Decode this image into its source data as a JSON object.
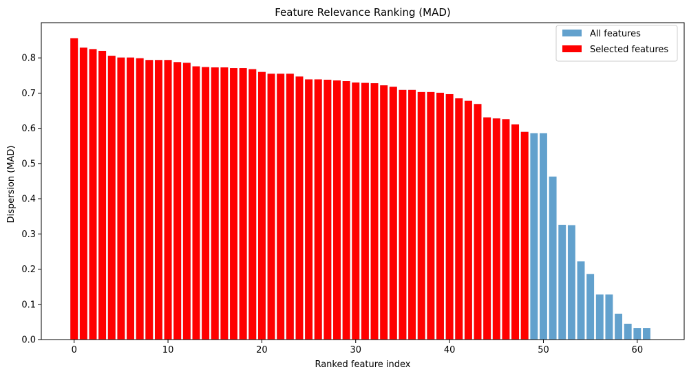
{
  "chart_data": {
    "type": "bar",
    "title": "Feature Relevance Ranking (MAD)",
    "xlabel": "Ranked feature index",
    "ylabel": "Dispersion (MAD)",
    "xlim": [
      -3.5,
      65
    ],
    "ylim": [
      0,
      0.9
    ],
    "xticks": [
      0,
      10,
      20,
      30,
      40,
      50,
      60
    ],
    "yticks": [
      0.0,
      0.1,
      0.2,
      0.3,
      0.4,
      0.5,
      0.6,
      0.7,
      0.8
    ],
    "legend_position": "top-right",
    "grid": false,
    "selected_count": 49,
    "series": [
      {
        "name": "All features",
        "color": "#62a1cd",
        "x": [
          0,
          1,
          2,
          3,
          4,
          5,
          6,
          7,
          8,
          9,
          10,
          11,
          12,
          13,
          14,
          15,
          16,
          17,
          18,
          19,
          20,
          21,
          22,
          23,
          24,
          25,
          26,
          27,
          28,
          29,
          30,
          31,
          32,
          33,
          34,
          35,
          36,
          37,
          38,
          39,
          40,
          41,
          42,
          43,
          44,
          45,
          46,
          47,
          48,
          49,
          50,
          51,
          52,
          53,
          54,
          55,
          56,
          57,
          58,
          59,
          60,
          61
        ],
        "values": [
          0.856,
          0.829,
          0.825,
          0.82,
          0.806,
          0.801,
          0.801,
          0.799,
          0.794,
          0.794,
          0.794,
          0.788,
          0.786,
          0.776,
          0.774,
          0.773,
          0.773,
          0.771,
          0.771,
          0.768,
          0.76,
          0.755,
          0.755,
          0.755,
          0.747,
          0.739,
          0.739,
          0.738,
          0.736,
          0.734,
          0.73,
          0.729,
          0.728,
          0.722,
          0.718,
          0.709,
          0.709,
          0.703,
          0.703,
          0.701,
          0.697,
          0.685,
          0.678,
          0.669,
          0.631,
          0.628,
          0.626,
          0.611,
          0.59,
          0.586,
          0.586,
          0.463,
          0.326,
          0.325,
          0.222,
          0.186,
          0.128,
          0.128,
          0.073,
          0.045,
          0.033,
          0.033
        ]
      },
      {
        "name": "Selected features",
        "color": "#ff0000",
        "x": [
          0,
          1,
          2,
          3,
          4,
          5,
          6,
          7,
          8,
          9,
          10,
          11,
          12,
          13,
          14,
          15,
          16,
          17,
          18,
          19,
          20,
          21,
          22,
          23,
          24,
          25,
          26,
          27,
          28,
          29,
          30,
          31,
          32,
          33,
          34,
          35,
          36,
          37,
          38,
          39,
          40,
          41,
          42,
          43,
          44,
          45,
          46,
          47,
          48
        ],
        "values": [
          0.856,
          0.829,
          0.825,
          0.82,
          0.806,
          0.801,
          0.801,
          0.799,
          0.794,
          0.794,
          0.794,
          0.788,
          0.786,
          0.776,
          0.774,
          0.773,
          0.773,
          0.771,
          0.771,
          0.768,
          0.76,
          0.755,
          0.755,
          0.755,
          0.747,
          0.739,
          0.739,
          0.738,
          0.736,
          0.734,
          0.73,
          0.729,
          0.728,
          0.722,
          0.718,
          0.709,
          0.709,
          0.703,
          0.703,
          0.701,
          0.697,
          0.685,
          0.678,
          0.669,
          0.631,
          0.628,
          0.626,
          0.611,
          0.59
        ]
      }
    ]
  }
}
